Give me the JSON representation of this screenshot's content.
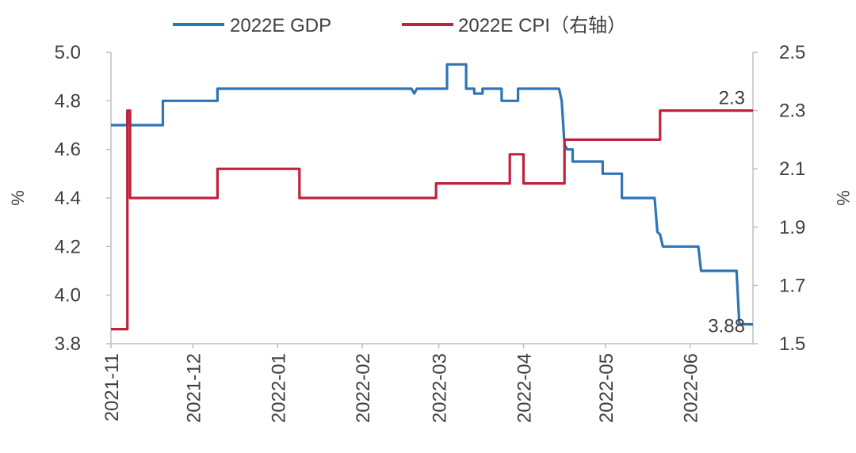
{
  "chart_data": {
    "type": "line",
    "legend": {
      "position": "top",
      "entries": [
        "2022E GDP",
        "2022E CPI（右轴）"
      ]
    },
    "x": {
      "type": "date",
      "range": [
        "2021-11-01",
        "2022-06-24"
      ],
      "tick_labels": [
        "2021-11",
        "2021-12",
        "2022-01",
        "2022-02",
        "2022-03",
        "2022-04",
        "2022-05",
        "2022-06"
      ]
    },
    "y_left": {
      "label": "%",
      "range": [
        3.8,
        5.0
      ],
      "ticks": [
        "3.8",
        "4.0",
        "4.2",
        "4.4",
        "4.6",
        "4.8",
        "5.0"
      ]
    },
    "y_right": {
      "label": "%",
      "range": [
        1.5,
        2.5
      ],
      "ticks": [
        "1.5",
        "1.7",
        "1.9",
        "2.1",
        "2.3",
        "2.5"
      ]
    },
    "grid": false,
    "series": [
      {
        "name": "2022E GDP",
        "axis": "left",
        "color": "#2e75b6",
        "step": true,
        "points": [
          [
            "2021-11-01",
            4.7
          ],
          [
            "2021-11-07",
            4.7
          ],
          [
            "2021-11-07",
            4.75
          ],
          [
            "2021-11-08",
            4.75
          ],
          [
            "2021-11-08",
            4.7
          ],
          [
            "2021-11-20",
            4.7
          ],
          [
            "2021-11-20",
            4.8
          ],
          [
            "2021-12-10",
            4.8
          ],
          [
            "2021-12-10",
            4.85
          ],
          [
            "2022-02-19",
            4.85
          ],
          [
            "2022-02-20",
            4.83
          ],
          [
            "2022-02-21",
            4.85
          ],
          [
            "2022-03-04",
            4.85
          ],
          [
            "2022-03-04",
            4.95
          ],
          [
            "2022-03-11",
            4.95
          ],
          [
            "2022-03-11",
            4.85
          ],
          [
            "2022-03-14",
            4.85
          ],
          [
            "2022-03-14",
            4.83
          ],
          [
            "2022-03-17",
            4.83
          ],
          [
            "2022-03-17",
            4.85
          ],
          [
            "2022-03-24",
            4.85
          ],
          [
            "2022-03-24",
            4.8
          ],
          [
            "2022-03-30",
            4.8
          ],
          [
            "2022-03-30",
            4.85
          ],
          [
            "2022-04-14",
            4.85
          ],
          [
            "2022-04-15",
            4.8
          ],
          [
            "2022-04-16",
            4.62
          ],
          [
            "2022-04-17",
            4.6
          ],
          [
            "2022-04-19",
            4.6
          ],
          [
            "2022-04-19",
            4.55
          ],
          [
            "2022-04-30",
            4.55
          ],
          [
            "2022-04-30",
            4.5
          ],
          [
            "2022-05-07",
            4.5
          ],
          [
            "2022-05-07",
            4.4
          ],
          [
            "2022-05-19",
            4.4
          ],
          [
            "2022-05-20",
            4.26
          ],
          [
            "2022-05-21",
            4.25
          ],
          [
            "2022-05-22",
            4.2
          ],
          [
            "2022-06-04",
            4.2
          ],
          [
            "2022-06-05",
            4.1
          ],
          [
            "2022-06-18",
            4.1
          ],
          [
            "2022-06-19",
            3.88
          ],
          [
            "2022-06-24",
            3.88
          ]
        ]
      },
      {
        "name": "2022E CPI（右轴）",
        "axis": "right",
        "color": "#c0223b",
        "step": true,
        "points": [
          [
            "2021-11-01",
            1.55
          ],
          [
            "2021-11-07",
            1.55
          ],
          [
            "2021-11-07",
            2.3
          ],
          [
            "2021-11-08",
            2.3
          ],
          [
            "2021-11-08",
            2.0
          ],
          [
            "2021-12-10",
            2.0
          ],
          [
            "2021-12-10",
            2.1
          ],
          [
            "2022-01-09",
            2.1
          ],
          [
            "2022-01-09",
            2.0
          ],
          [
            "2022-02-28",
            2.0
          ],
          [
            "2022-02-28",
            2.05
          ],
          [
            "2022-03-27",
            2.05
          ],
          [
            "2022-03-27",
            2.15
          ],
          [
            "2022-04-01",
            2.15
          ],
          [
            "2022-04-01",
            2.05
          ],
          [
            "2022-04-16",
            2.05
          ],
          [
            "2022-04-16",
            2.2
          ],
          [
            "2022-05-21",
            2.2
          ],
          [
            "2022-05-21",
            2.3
          ],
          [
            "2022-06-24",
            2.3
          ]
        ]
      }
    ],
    "annotations": [
      {
        "text": "2.3",
        "series": "2022E CPI（右轴）"
      },
      {
        "text": "3.88",
        "series": "2022E GDP"
      }
    ]
  }
}
